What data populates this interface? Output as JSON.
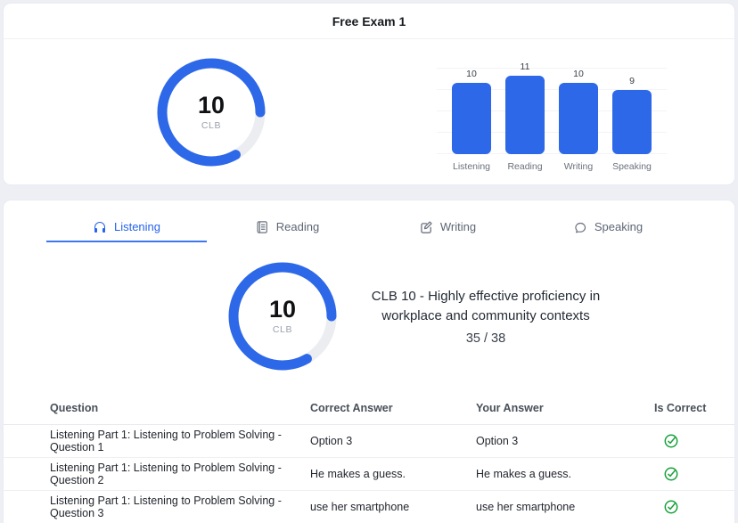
{
  "header": {
    "title": "Free Exam 1"
  },
  "overall": {
    "gauge": {
      "score": 10,
      "max": 12,
      "unit": "CLB"
    }
  },
  "chart_data": {
    "type": "bar",
    "categories": [
      "Listening",
      "Reading",
      "Writing",
      "Speaking"
    ],
    "values": [
      10,
      11,
      10,
      9
    ],
    "title": "",
    "xlabel": "",
    "ylabel": "",
    "ylim": [
      0,
      12
    ],
    "grid": "horizontal, ticks every 3",
    "bar_color": "#2d68e8"
  },
  "tabs": [
    {
      "label": "Listening",
      "icon": "headphones-icon",
      "active": true
    },
    {
      "label": "Reading",
      "icon": "document-icon",
      "active": false
    },
    {
      "label": "Writing",
      "icon": "pencil-square-icon",
      "active": false
    },
    {
      "label": "Speaking",
      "icon": "chat-bubble-icon",
      "active": false
    }
  ],
  "section": {
    "gauge": {
      "score": 10,
      "max": 12,
      "unit": "CLB"
    },
    "description": "CLB 10 - Highly effective proficiency in workplace and community contexts",
    "score_fraction": "35 / 38"
  },
  "table": {
    "headers": [
      "Question",
      "Correct Answer",
      "Your Answer",
      "Is Correct"
    ],
    "rows": [
      {
        "question": "Listening Part 1: Listening to Problem Solving - Question 1",
        "correct_answer": "Option 3",
        "your_answer": "Option 3",
        "is_correct": true
      },
      {
        "question": "Listening Part 1: Listening to Problem Solving - Question 2",
        "correct_answer": "He makes a guess.",
        "your_answer": "He makes a guess.",
        "is_correct": true
      },
      {
        "question": "Listening Part 1: Listening to Problem Solving - Question 3",
        "correct_answer": "use her smartphone",
        "your_answer": "use her smartphone",
        "is_correct": true
      }
    ]
  },
  "colors": {
    "accent_blue": "#2d68e8",
    "tab_active_blue": "#2563eb",
    "check_green": "#18a23b",
    "page_background": "#edeff4"
  }
}
